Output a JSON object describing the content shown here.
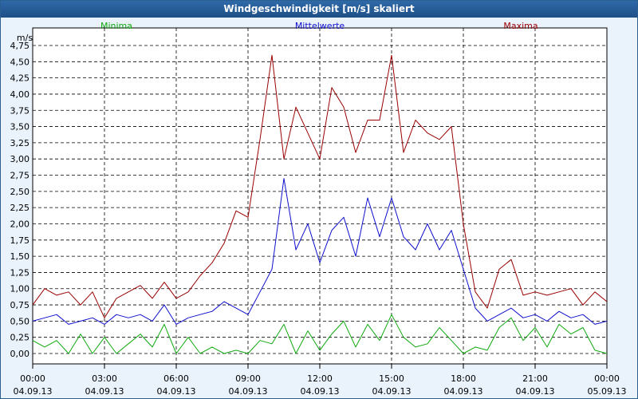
{
  "window": {
    "title": "Windgeschwindigkeit [m/s] skaliert"
  },
  "colors": {
    "minima": "#11aa11",
    "mittelwerte": "#1010cc",
    "maxima": "#990000",
    "grid": "#000000",
    "background": "#ffffff",
    "frame": "#eaf2fb"
  },
  "chart_data": {
    "type": "line",
    "ylabel": "m/s",
    "ylim": [
      0,
      4.75
    ],
    "xlim": [
      "04.09.13 00:00",
      "05.09.13 00:00"
    ],
    "y_ticks": [
      "0,00",
      "0,25",
      "0,50",
      "0,75",
      "1,00",
      "1,25",
      "1,50",
      "1,75",
      "2,00",
      "2,25",
      "2,50",
      "2,75",
      "3,00",
      "3,25",
      "3,50",
      "3,75",
      "4,00",
      "4,25",
      "4,50",
      "4,75"
    ],
    "x_ticks": [
      {
        "time": "00:00",
        "date": "04.09.13"
      },
      {
        "time": "03:00",
        "date": "04.09.13"
      },
      {
        "time": "06:00",
        "date": "04.09.13"
      },
      {
        "time": "09:00",
        "date": "04.09.13"
      },
      {
        "time": "12:00",
        "date": "04.09.13"
      },
      {
        "time": "15:00",
        "date": "04.09.13"
      },
      {
        "time": "18:00",
        "date": "04.09.13"
      },
      {
        "time": "21:00",
        "date": "04.09.13"
      },
      {
        "time": "00:00",
        "date": "05.09.13"
      }
    ],
    "grid": true,
    "legend_position": "top",
    "x_hours": [
      0,
      0.5,
      1,
      1.5,
      2,
      2.5,
      3,
      3.5,
      4,
      4.5,
      5,
      5.5,
      6,
      6.5,
      7,
      7.5,
      8,
      8.5,
      9,
      9.5,
      10,
      10.5,
      11,
      11.5,
      12,
      12.5,
      13,
      13.5,
      14,
      14.5,
      15,
      15.5,
      16,
      16.5,
      17,
      17.5,
      18,
      18.5,
      19,
      19.5,
      20,
      20.5,
      21,
      21.5,
      22,
      22.5,
      23,
      23.5,
      24
    ],
    "series": [
      {
        "name": "Minima",
        "values": [
          0.2,
          0.1,
          0.2,
          0.0,
          0.3,
          0.0,
          0.25,
          0.0,
          0.15,
          0.3,
          0.1,
          0.45,
          0.0,
          0.25,
          0.0,
          0.1,
          0.0,
          0.05,
          0.0,
          0.2,
          0.15,
          0.45,
          0.0,
          0.35,
          0.05,
          0.3,
          0.5,
          0.1,
          0.45,
          0.2,
          0.6,
          0.25,
          0.1,
          0.15,
          0.4,
          0.2,
          0.0,
          0.1,
          0.05,
          0.4,
          0.55,
          0.2,
          0.4,
          0.1,
          0.45,
          0.3,
          0.4,
          0.05,
          0.0
        ]
      },
      {
        "name": "Mittelwerte",
        "values": [
          0.5,
          0.55,
          0.6,
          0.45,
          0.5,
          0.55,
          0.45,
          0.6,
          0.55,
          0.6,
          0.5,
          0.75,
          0.45,
          0.55,
          0.6,
          0.65,
          0.8,
          0.7,
          0.6,
          0.95,
          1.3,
          2.7,
          1.6,
          2.0,
          1.4,
          1.9,
          2.1,
          1.5,
          2.4,
          1.8,
          2.4,
          1.8,
          1.6,
          2.0,
          1.6,
          1.9,
          1.3,
          0.7,
          0.5,
          0.6,
          0.7,
          0.55,
          0.6,
          0.5,
          0.65,
          0.55,
          0.6,
          0.45,
          0.5
        ]
      },
      {
        "name": "Maxima",
        "values": [
          0.75,
          1.0,
          0.9,
          0.95,
          0.75,
          0.95,
          0.55,
          0.85,
          0.95,
          1.05,
          0.85,
          1.1,
          0.85,
          0.95,
          1.2,
          1.4,
          1.7,
          2.2,
          2.1,
          3.3,
          4.6,
          3.0,
          3.8,
          3.4,
          3.0,
          4.1,
          3.8,
          3.1,
          3.6,
          3.6,
          4.6,
          3.1,
          3.6,
          3.4,
          3.3,
          3.5,
          2.0,
          0.95,
          0.7,
          1.3,
          1.45,
          0.9,
          0.95,
          0.9,
          0.95,
          1.0,
          0.75,
          0.95,
          0.8
        ]
      }
    ]
  }
}
